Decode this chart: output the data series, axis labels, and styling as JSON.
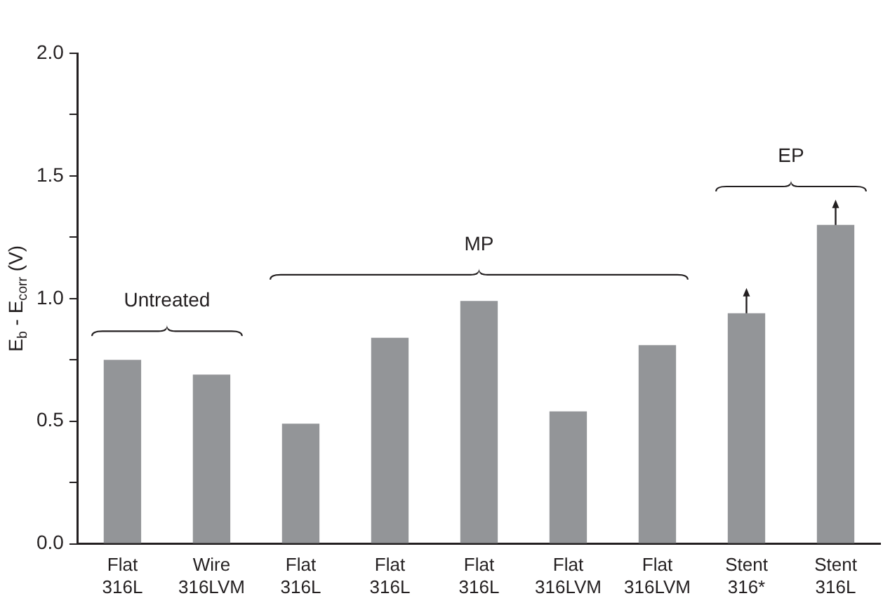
{
  "chart_data": {
    "type": "bar",
    "ylabel": "E$_{b}$ - E$_{corr}$ (V)",
    "categories": [
      "Flat\n316L",
      "Wire\n316LVM",
      "Flat\n316L",
      "Flat\n316L",
      "Flat\n316L",
      "Flat\n316LVM",
      "Flat\n316LVM",
      "Stent\n316*",
      "Stent\n316L"
    ],
    "values": [
      0.75,
      0.69,
      0.49,
      0.84,
      0.99,
      0.54,
      0.81,
      0.94,
      1.3
    ],
    "color": "#939598",
    "ylim": [
      0,
      2
    ],
    "yticks": [
      {
        "value": 0,
        "label": "0.0"
      },
      {
        "value": 0.25,
        "label": null
      },
      {
        "value": 0.5,
        "label": "0.5"
      },
      {
        "value": 0.75,
        "label": null
      },
      {
        "value": 1,
        "label": "1.0"
      },
      {
        "value": 1.25,
        "label": null
      },
      {
        "value": 1.5,
        "label": "1.5"
      },
      {
        "value": 1.75,
        "label": null
      },
      {
        "value": 2,
        "label": "2.0"
      }
    ],
    "grid": false,
    "legend": false,
    "annotations": [
      "Untreated",
      "MP",
      "EP"
    ]
  }
}
